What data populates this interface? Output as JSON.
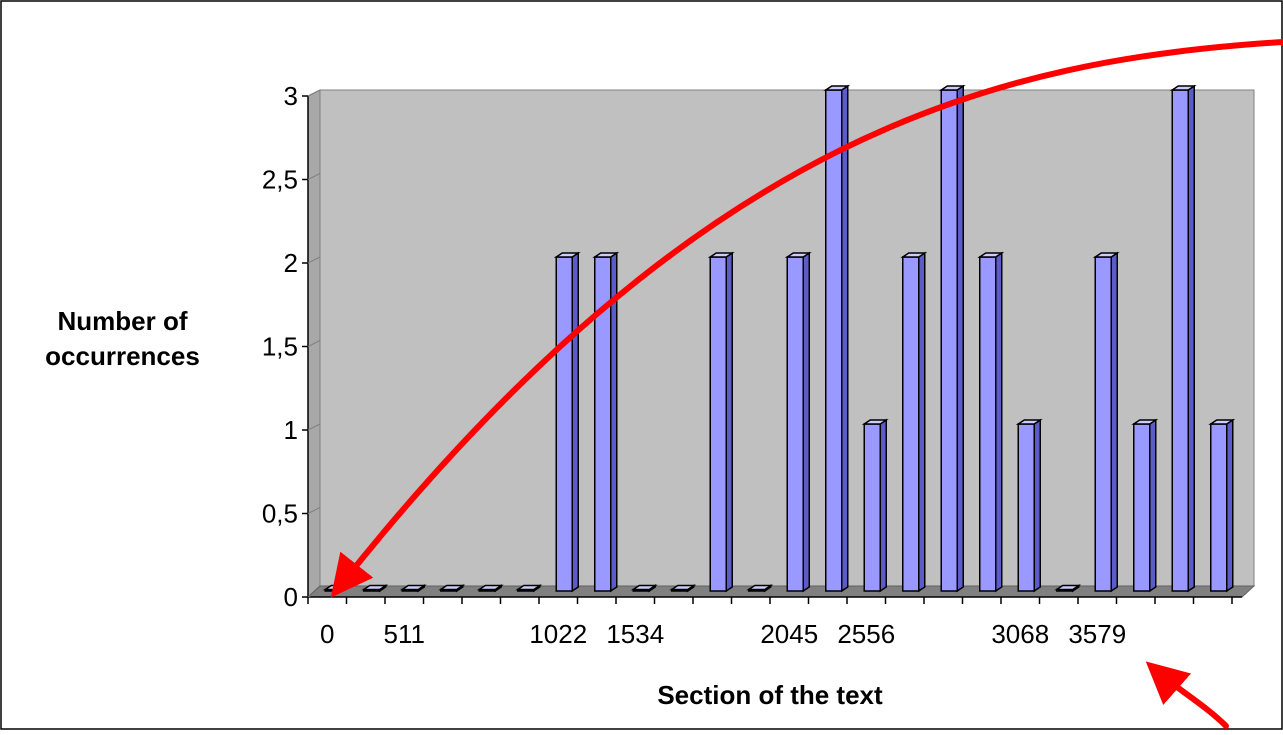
{
  "chart_data": {
    "type": "bar",
    "title": "",
    "xlabel": "Section of the text",
    "ylabel_line1": "Number of",
    "ylabel_line2": "occurrences",
    "ylim": [
      0,
      3
    ],
    "yticks": [
      "0",
      "0,5",
      "1",
      "1,5",
      "2",
      "2,5",
      "3"
    ],
    "xtick_labels": [
      "0",
      "511",
      "1022",
      "1534",
      "2045",
      "2556",
      "3068",
      "3579"
    ],
    "categories": [
      "0",
      "",
      "511",
      "",
      "",
      "",
      "1022",
      "",
      "1534",
      "",
      "",
      "",
      "2045",
      "",
      "2556",
      "",
      "",
      "",
      "3068",
      "",
      "3579",
      "",
      "",
      ""
    ],
    "values": [
      0,
      0,
      0,
      0,
      0,
      0,
      2,
      2,
      0,
      0,
      2,
      0,
      2,
      3,
      1,
      2,
      3,
      2,
      1,
      0,
      2,
      1,
      3,
      1
    ],
    "bar_color": "#9999ff",
    "plot_bg": "#c0c0c0",
    "arrow_color": "#ff0000",
    "grid": false,
    "legend": "none"
  }
}
